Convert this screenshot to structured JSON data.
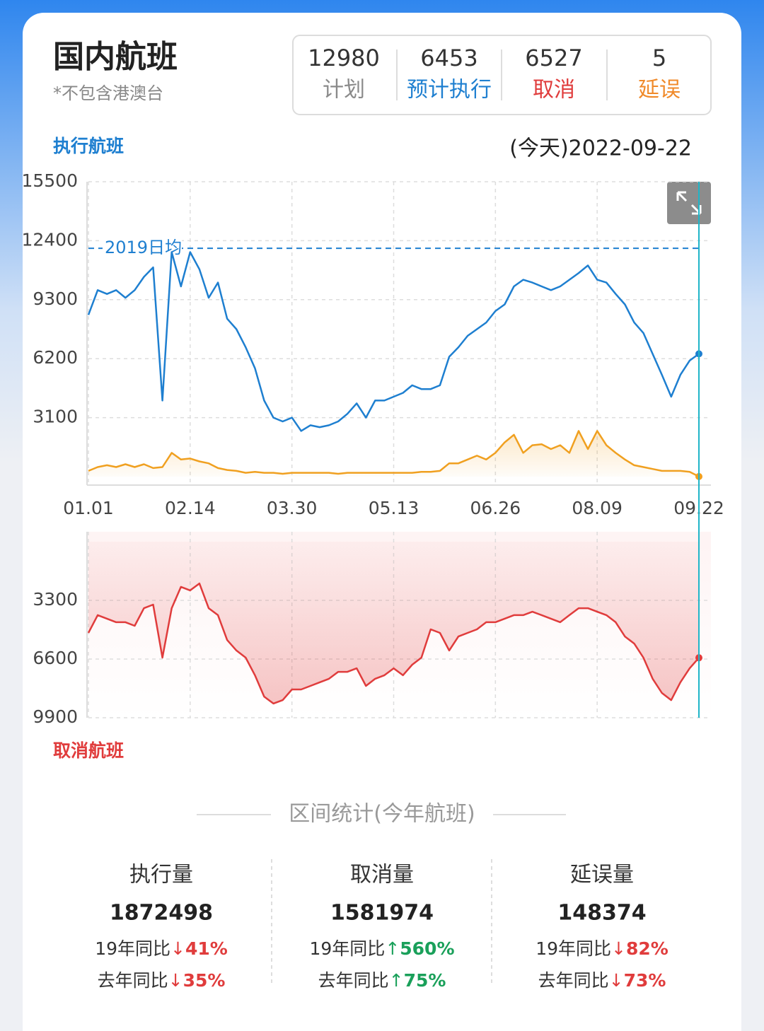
{
  "header": {
    "title": "国内航班",
    "note": "*不包含港澳台",
    "summary": [
      {
        "value": 12980,
        "label": "计划",
        "color": "#8a8a8a"
      },
      {
        "value": 6453,
        "label": "预计执行",
        "color": "#1e7fd0"
      },
      {
        "value": 6527,
        "label": "取消",
        "color": "#e03c3c"
      },
      {
        "value": 5,
        "label": "延误",
        "color": "#f08a2a"
      }
    ]
  },
  "chart_data": [
    {
      "type": "line",
      "title": "执行航班",
      "title_color": "#1e7fd0",
      "subtitle": "(今天)2022-09-22",
      "x": [
        "01.01",
        "01.05",
        "01.09",
        "01.13",
        "01.17",
        "01.21",
        "01.25",
        "01.29",
        "02.02",
        "02.06",
        "02.10",
        "02.14",
        "02.18",
        "02.22",
        "02.26",
        "03.02",
        "03.06",
        "03.10",
        "03.14",
        "03.18",
        "03.22",
        "03.26",
        "03.30",
        "04.03",
        "04.07",
        "04.11",
        "04.15",
        "04.19",
        "04.23",
        "04.27",
        "05.01",
        "05.05",
        "05.09",
        "05.13",
        "05.17",
        "05.21",
        "05.25",
        "05.29",
        "06.02",
        "06.06",
        "06.10",
        "06.14",
        "06.18",
        "06.22",
        "06.26",
        "06.30",
        "07.04",
        "07.08",
        "07.12",
        "07.16",
        "07.20",
        "07.24",
        "07.28",
        "08.01",
        "08.05",
        "08.09",
        "08.13",
        "08.17",
        "08.21",
        "08.25",
        "08.29",
        "09.02",
        "09.06",
        "09.10",
        "09.14",
        "09.18",
        "09.22"
      ],
      "xticks": [
        "01.01",
        "02.14",
        "03.30",
        "05.13",
        "06.26",
        "08.09",
        "09.22"
      ],
      "xtick_labels": true,
      "ylim": [
        0,
        15500
      ],
      "yticks": [
        3100,
        6200,
        9300,
        12400,
        15500
      ],
      "inverted": false,
      "grid": true,
      "reference_line": {
        "value": 12000,
        "label": "2019日均",
        "color": "#1e7fd0"
      },
      "series": [
        {
          "color": "#1e7fd0",
          "area": false,
          "values": [
            8500,
            9800,
            9600,
            9800,
            9400,
            9800,
            10500,
            11000,
            4000,
            11800,
            10000,
            11800,
            10900,
            9400,
            10200,
            8300,
            7750,
            6800,
            5700,
            4000,
            3100,
            2900,
            3100,
            2400,
            2700,
            2600,
            2700,
            2900,
            3300,
            3850,
            3100,
            4000,
            4000,
            4200,
            4400,
            4800,
            4600,
            4600,
            4800,
            6300,
            6800,
            7400,
            7750,
            8100,
            8700,
            9050,
            10000,
            10350,
            10200,
            10000,
            9800,
            10000,
            10350,
            10700,
            11100,
            10350,
            10200,
            9600,
            9050,
            8100,
            7550,
            6450,
            5350,
            4200,
            5350,
            6100,
            6453
          ]
        },
        {
          "color": "#f0a020",
          "area": true,
          "values": [
            300,
            500,
            600,
            500,
            650,
            500,
            650,
            450,
            500,
            1250,
            900,
            950,
            800,
            700,
            450,
            350,
            300,
            200,
            250,
            200,
            200,
            150,
            200,
            200,
            200,
            200,
            200,
            150,
            200,
            200,
            200,
            200,
            200,
            200,
            200,
            200,
            250,
            250,
            300,
            700,
            700,
            900,
            1100,
            900,
            1250,
            1800,
            2200,
            1250,
            1650,
            1700,
            1450,
            1650,
            1250,
            2400,
            1450,
            2400,
            1650,
            1250,
            900,
            600,
            500,
            400,
            300,
            300,
            300,
            250,
            5
          ]
        }
      ]
    },
    {
      "type": "line",
      "title": "取消航班",
      "title_color": "#e03c3c",
      "x": [
        "01.01",
        "01.05",
        "01.09",
        "01.13",
        "01.17",
        "01.21",
        "01.25",
        "01.29",
        "02.02",
        "02.06",
        "02.10",
        "02.14",
        "02.18",
        "02.22",
        "02.26",
        "03.02",
        "03.06",
        "03.10",
        "03.14",
        "03.18",
        "03.22",
        "03.26",
        "03.30",
        "04.03",
        "04.07",
        "04.11",
        "04.15",
        "04.19",
        "04.23",
        "04.27",
        "05.01",
        "05.05",
        "05.09",
        "05.13",
        "05.17",
        "05.21",
        "05.25",
        "05.29",
        "06.02",
        "06.06",
        "06.10",
        "06.14",
        "06.18",
        "06.22",
        "06.26",
        "06.30",
        "07.04",
        "07.08",
        "07.12",
        "07.16",
        "07.20",
        "07.24",
        "07.28",
        "08.01",
        "08.05",
        "08.09",
        "08.13",
        "08.17",
        "08.21",
        "08.25",
        "08.29",
        "09.02",
        "09.06",
        "09.10",
        "09.14",
        "09.18",
        "09.22"
      ],
      "xticks": [
        "01.01",
        "02.14",
        "03.30",
        "05.13",
        "06.26",
        "08.09",
        "09.22"
      ],
      "xtick_labels": false,
      "ylim": [
        0,
        9900
      ],
      "yticks": [
        3300,
        6600,
        9900
      ],
      "inverted": true,
      "grid": true,
      "series": [
        {
          "color": "#e03c3c",
          "area": true,
          "values": [
            5130,
            4130,
            4330,
            4530,
            4530,
            4730,
            3740,
            3540,
            6520,
            3740,
            2540,
            2740,
            2350,
            3740,
            4130,
            5530,
            6120,
            6520,
            7510,
            8710,
            9100,
            8910,
            8310,
            8310,
            8110,
            7910,
            7710,
            7320,
            7320,
            7120,
            8110,
            7710,
            7510,
            7120,
            7510,
            6920,
            6520,
            4930,
            5130,
            6120,
            5330,
            5130,
            4930,
            4530,
            4530,
            4330,
            4130,
            4130,
            3940,
            4130,
            4330,
            4530,
            4130,
            3740,
            3740,
            3940,
            4130,
            4530,
            5330,
            5730,
            6520,
            7710,
            8510,
            8910,
            7910,
            7120,
            6527
          ]
        }
      ]
    }
  ],
  "stats": {
    "title": "区间统计(今年航班)",
    "columns": [
      {
        "label": "执行量",
        "total": 1872498,
        "rows": [
          {
            "label": "19年同比",
            "arrow": "↓",
            "change": "41%",
            "color": "#e03c3c"
          },
          {
            "label": "去年同比",
            "arrow": "↓",
            "change": "35%",
            "color": "#e03c3c"
          }
        ]
      },
      {
        "label": "取消量",
        "total": 1581974,
        "rows": [
          {
            "label": "19年同比",
            "arrow": "↑",
            "change": "560%",
            "color": "#1aa05a"
          },
          {
            "label": "去年同比",
            "arrow": "↑",
            "change": "75%",
            "color": "#1aa05a"
          }
        ]
      },
      {
        "label": "延误量",
        "total": 148374,
        "rows": [
          {
            "label": "19年同比",
            "arrow": "↓",
            "change": "82%",
            "color": "#e03c3c"
          },
          {
            "label": "去年同比",
            "arrow": "↓",
            "change": "73%",
            "color": "#e03c3c"
          }
        ]
      }
    ]
  }
}
